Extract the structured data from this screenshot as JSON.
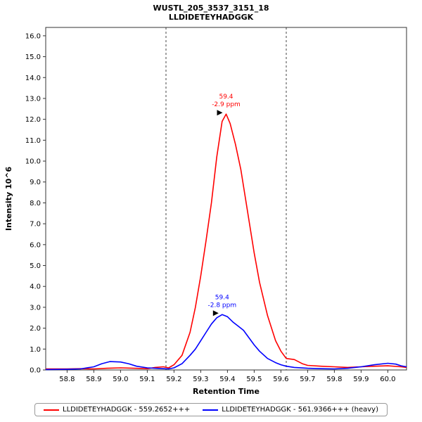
{
  "chart_data": {
    "type": "line",
    "title": "WUSTL_205_3537_3151_18",
    "subtitle": "LLDIDETEYHADGGK",
    "xlabel": "Retention Time",
    "ylabel": "Intensity 10^6",
    "xlim": [
      58.72,
      60.07
    ],
    "ylim": [
      0,
      16.4
    ],
    "grid": false,
    "legend_position": "bottom",
    "xticks": [
      58.8,
      58.9,
      59.0,
      59.1,
      59.2,
      59.3,
      59.4,
      59.5,
      59.6,
      59.7,
      59.8,
      59.9,
      60.0
    ],
    "yticks": [
      0,
      1,
      2,
      3,
      4,
      5,
      6,
      7,
      8,
      9,
      10,
      11,
      12,
      13,
      14,
      15,
      16
    ],
    "integration_boundaries": [
      59.17,
      59.62
    ],
    "boundary_line_style": "dashed",
    "series": [
      {
        "name": "LLDIDETEYHADGGK - 559.2652+++",
        "color": "#ff0000",
        "x": [
          58.72,
          58.8,
          58.85,
          58.9,
          58.95,
          59.0,
          59.05,
          59.1,
          59.13,
          59.16,
          59.18,
          59.2,
          59.23,
          59.26,
          59.28,
          59.3,
          59.32,
          59.34,
          59.36,
          59.38,
          59.395,
          59.41,
          59.43,
          59.45,
          59.47,
          59.5,
          59.52,
          59.55,
          59.58,
          59.6,
          59.62,
          59.65,
          59.68,
          59.7,
          59.75,
          59.8,
          59.85,
          59.9,
          59.95,
          60.0,
          60.05,
          60.07
        ],
        "y": [
          0.05,
          0.05,
          0.06,
          0.05,
          0.08,
          0.1,
          0.08,
          0.06,
          0.12,
          0.15,
          0.1,
          0.25,
          0.7,
          1.8,
          3.0,
          4.5,
          6.2,
          8.0,
          10.2,
          11.9,
          12.25,
          11.8,
          10.8,
          9.6,
          8.0,
          5.6,
          4.2,
          2.6,
          1.4,
          0.9,
          0.55,
          0.5,
          0.3,
          0.22,
          0.18,
          0.15,
          0.12,
          0.15,
          0.18,
          0.2,
          0.15,
          0.12
        ],
        "annotation": {
          "x": 59.395,
          "y": 12.25,
          "lines": [
            "59.4",
            "-2.9 ppm"
          ]
        }
      },
      {
        "name": "LLDIDETEYHADGGK - 561.9366+++ (heavy)",
        "color": "#0000ff",
        "x": [
          58.72,
          58.8,
          58.85,
          58.9,
          58.93,
          58.96,
          59.0,
          59.03,
          59.06,
          59.1,
          59.13,
          59.16,
          59.18,
          59.2,
          59.23,
          59.26,
          59.28,
          59.3,
          59.32,
          59.34,
          59.36,
          59.38,
          59.4,
          59.42,
          59.44,
          59.46,
          59.48,
          59.5,
          59.52,
          59.55,
          59.58,
          59.6,
          59.62,
          59.65,
          59.7,
          59.75,
          59.8,
          59.85,
          59.9,
          59.95,
          60.0,
          60.03,
          60.05,
          60.07
        ],
        "y": [
          0.02,
          0.03,
          0.05,
          0.15,
          0.3,
          0.4,
          0.38,
          0.3,
          0.18,
          0.1,
          0.08,
          0.06,
          0.05,
          0.1,
          0.3,
          0.7,
          1.0,
          1.4,
          1.8,
          2.2,
          2.5,
          2.65,
          2.55,
          2.3,
          2.1,
          1.9,
          1.55,
          1.2,
          0.9,
          0.55,
          0.35,
          0.25,
          0.18,
          0.12,
          0.08,
          0.06,
          0.05,
          0.08,
          0.15,
          0.25,
          0.32,
          0.28,
          0.2,
          0.15
        ],
        "annotation": {
          "x": 59.38,
          "y": 2.65,
          "lines": [
            "59.4",
            "-2.8 ppm"
          ]
        }
      }
    ]
  }
}
